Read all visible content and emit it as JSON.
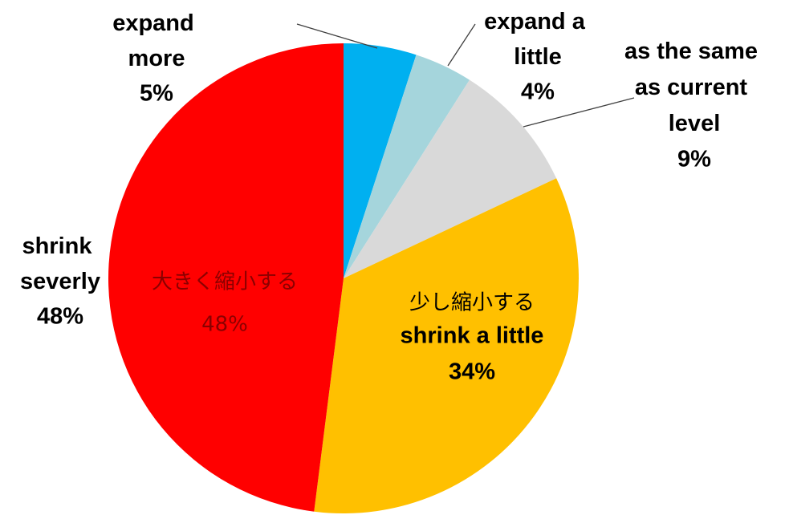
{
  "chart_data": {
    "type": "pie",
    "categories": [
      "expand more",
      "expand a little",
      "as the same as current level",
      "shrink a little",
      "shrink severly"
    ],
    "values": [
      5,
      4,
      9,
      34,
      48
    ],
    "value_labels": [
      "5%",
      "4%",
      "9%",
      "34%",
      "48%"
    ],
    "colors": [
      "#00b0f0",
      "#a5d5dc",
      "#d9d9d9",
      "#ffc000",
      "#ff0000"
    ],
    "annotations": [
      {
        "text": "大きく縮小する",
        "label": "48%"
      },
      {
        "text": "少し縮小する"
      }
    ]
  }
}
